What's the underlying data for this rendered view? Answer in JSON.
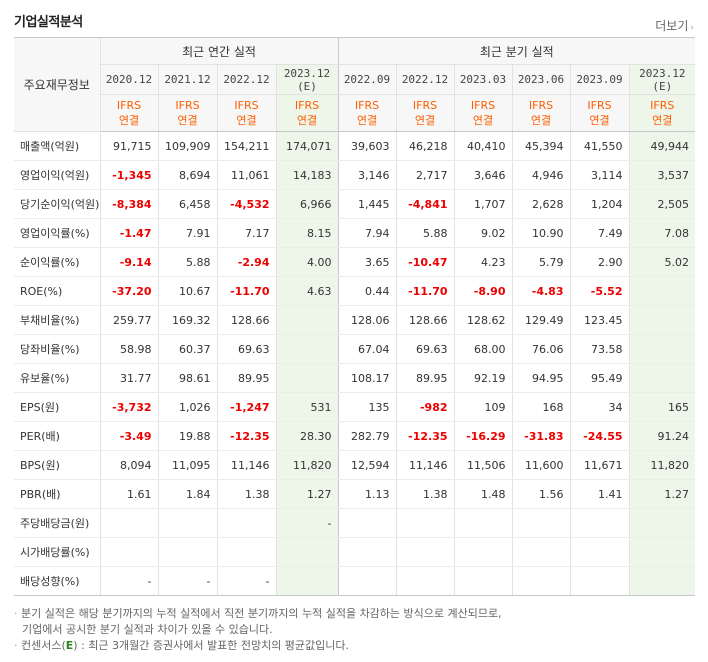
{
  "section": {
    "title": "기업실적분석",
    "more_label": "더보기",
    "more_icon": "chevron-right-icon"
  },
  "header": {
    "row_label": "주요재무정보",
    "annual_label": "최근 연간 실적",
    "quarterly_label": "최근 분기 실적",
    "annual_periods": [
      "2020.12",
      "2021.12",
      "2022.12",
      "2023.12"
    ],
    "quarterly_periods": [
      "2022.09",
      "2022.12",
      "2023.03",
      "2023.06",
      "2023.09",
      "2023.12"
    ],
    "estimate_mark": "(E)",
    "ifrs": "IFRS",
    "consolidated": "연결"
  },
  "rows": [
    {
      "label": "매출액(억원)",
      "values": [
        "91,715",
        "109,909",
        "154,211",
        "174,071",
        "39,603",
        "46,218",
        "40,410",
        "45,394",
        "41,550",
        "49,944"
      ]
    },
    {
      "label": "영업이익(억원)",
      "values": [
        "-1,345",
        "8,694",
        "11,061",
        "14,183",
        "3,146",
        "2,717",
        "3,646",
        "4,946",
        "3,114",
        "3,537"
      ]
    },
    {
      "label": "당기순이익(억원)",
      "values": [
        "-8,384",
        "6,458",
        "-4,532",
        "6,966",
        "1,445",
        "-4,841",
        "1,707",
        "2,628",
        "1,204",
        "2,505"
      ]
    },
    {
      "label": "영업이익률(%)",
      "values": [
        "-1.47",
        "7.91",
        "7.17",
        "8.15",
        "7.94",
        "5.88",
        "9.02",
        "10.90",
        "7.49",
        "7.08"
      ]
    },
    {
      "label": "순이익률(%)",
      "values": [
        "-9.14",
        "5.88",
        "-2.94",
        "4.00",
        "3.65",
        "-10.47",
        "4.23",
        "5.79",
        "2.90",
        "5.02"
      ]
    },
    {
      "label": "ROE(%)",
      "values": [
        "-37.20",
        "10.67",
        "-11.70",
        "4.63",
        "0.44",
        "-11.70",
        "-8.90",
        "-4.83",
        "-5.52",
        ""
      ]
    },
    {
      "label": "부채비율(%)",
      "values": [
        "259.77",
        "169.32",
        "128.66",
        "",
        "128.06",
        "128.66",
        "128.62",
        "129.49",
        "123.45",
        ""
      ]
    },
    {
      "label": "당좌비율(%)",
      "values": [
        "58.98",
        "60.37",
        "69.63",
        "",
        "67.04",
        "69.63",
        "68.00",
        "76.06",
        "73.58",
        ""
      ]
    },
    {
      "label": "유보율(%)",
      "values": [
        "31.77",
        "98.61",
        "89.95",
        "",
        "108.17",
        "89.95",
        "92.19",
        "94.95",
        "95.49",
        ""
      ]
    },
    {
      "label": "EPS(원)",
      "values": [
        "-3,732",
        "1,026",
        "-1,247",
        "531",
        "135",
        "-982",
        "109",
        "168",
        "34",
        "165"
      ]
    },
    {
      "label": "PER(배)",
      "values": [
        "-3.49",
        "19.88",
        "-12.35",
        "28.30",
        "282.79",
        "-12.35",
        "-16.29",
        "-31.83",
        "-24.55",
        "91.24"
      ]
    },
    {
      "label": "BPS(원)",
      "values": [
        "8,094",
        "11,095",
        "11,146",
        "11,820",
        "12,594",
        "11,146",
        "11,506",
        "11,600",
        "11,671",
        "11,820"
      ]
    },
    {
      "label": "PBR(배)",
      "values": [
        "1.61",
        "1.84",
        "1.38",
        "1.27",
        "1.13",
        "1.38",
        "1.48",
        "1.56",
        "1.41",
        "1.27"
      ]
    },
    {
      "label": "주당배당금(원)",
      "values": [
        "",
        "",
        "",
        "-",
        "",
        "",
        "",
        "",
        "",
        ""
      ]
    },
    {
      "label": "시가배당률(%)",
      "values": [
        "",
        "",
        "",
        "",
        "",
        "",
        "",
        "",
        "",
        ""
      ]
    },
    {
      "label": "배당성향(%)",
      "values": [
        "-",
        "-",
        "-",
        "",
        "",
        "",
        "",
        "",
        "",
        ""
      ]
    }
  ],
  "notes": {
    "line1": "분기 실적은 해당 분기까지의 누적 실적에서 직전 분기까지의 누적 실적을 차감하는 방식으로 계산되므로,",
    "line2": "기업에서 공시한 분기 실적과 차이가 있을 수 있습니다.",
    "line3_prefix": "컨센서스(",
    "line3_mark": "E",
    "line3_suffix": ") : 최근 3개월간 증권사에서 발표한 전망치의 평균값입니다."
  },
  "colors": {
    "negative": "#ec0000",
    "ifrs": "#ff5e00",
    "estimate_bg": "#eef6ea",
    "estimate_mark": "#2b8a1d"
  }
}
